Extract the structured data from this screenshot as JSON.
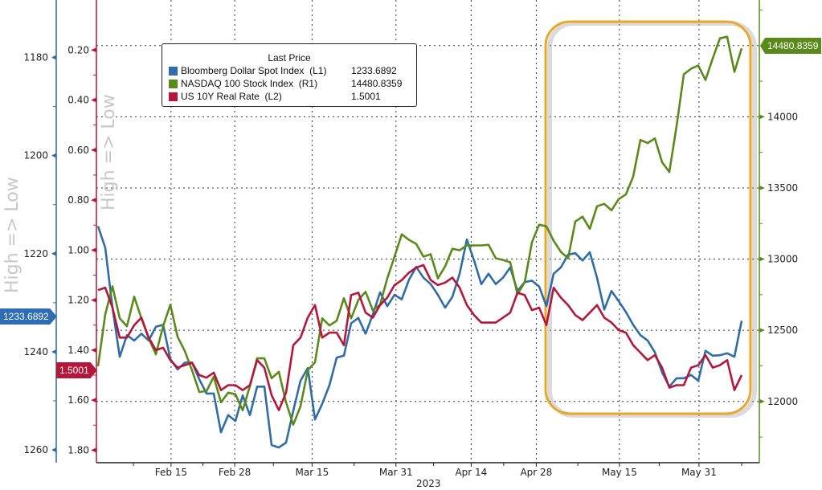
{
  "chart_data": {
    "type": "line",
    "title": "",
    "x_unit": "trading days since Feb 1, 2023",
    "xlabel": "2023",
    "x_ticks": [
      {
        "label": "Feb 15",
        "t": 10.1
      },
      {
        "label": "Feb 28",
        "t": 18.9
      },
      {
        "label": "Mar 15",
        "t": 29.6
      },
      {
        "label": "Mar 31",
        "t": 41.2
      },
      {
        "label": "Apr 14",
        "t": 51.6
      },
      {
        "label": "Apr 28",
        "t": 60.6
      },
      {
        "label": "May 15",
        "t": 72.1
      },
      {
        "label": "May 31",
        "t": 83.1
      }
    ],
    "axes": {
      "L1": {
        "label": "High => Low",
        "inverted": true,
        "range": [
          1168.3,
          1262.6
        ],
        "ticks": [
          1180,
          1200,
          1220,
          1240,
          1260
        ],
        "labels": [
          "1180",
          "1200",
          "1220",
          "1240",
          "1260"
        ],
        "color": "#2F6CA8"
      },
      "L2": {
        "label": "High => Low",
        "inverted": true,
        "range": [
          0.0,
          1.85
        ],
        "ticks": [
          0.2,
          0.4,
          0.6,
          0.8,
          1.0,
          1.2,
          1.4,
          1.6,
          1.8
        ],
        "labels": [
          "0.20",
          "0.40",
          "0.60",
          "0.80",
          "1.00",
          "1.20",
          "1.40",
          "1.60",
          "1.80"
        ],
        "color": "#B5173A"
      },
      "R1": {
        "inverted": false,
        "range": [
          11570,
          14820
        ],
        "ticks": [
          12000,
          12500,
          13000,
          13500,
          14000
        ],
        "labels": [
          "12000",
          "12500",
          "13000",
          "13500",
          "14000"
        ],
        "color": "#5A8A1A"
      }
    },
    "legend": {
      "title": "Last Price",
      "placement": "top-left",
      "entries": [
        {
          "name": "Bloomberg Dollar Spot Index",
          "axis": "(L1)",
          "last": "1233.6892"
        },
        {
          "name": "NASDAQ 100 Stock Index",
          "axis": "(R1)",
          "last": "14480.8359"
        },
        {
          "name": "US 10Y Real Rate",
          "axis": "(L2)",
          "last": "1.5001"
        }
      ]
    },
    "series": [
      {
        "name": "Bloomberg Dollar Spot Index",
        "axis": "L1",
        "color": "#2F6CA8",
        "last_label": "1233.6892",
        "values": [
          1214.4,
          1218.8,
          1231.0,
          1241.0,
          1236.6,
          1237.7,
          1236.3,
          1237.7,
          1234.9,
          1234.5,
          1241.5,
          1243.6,
          1242.2,
          1242.2,
          1245.6,
          1248.5,
          1248.5,
          1256.4,
          1252.9,
          1254.1,
          1248.9,
          1252.9,
          1247.1,
          1247.1,
          1259.0,
          1259.5,
          1258.5,
          1252.0,
          1245.9,
          1243.3,
          1253.8,
          1250.6,
          1246.8,
          1241.2,
          1240.8,
          1234.2,
          1233.1,
          1236.3,
          1232.4,
          1227.9,
          1230.7,
          1228.4,
          1229.3,
          1225.3,
          1222.7,
          1224.9,
          1226.2,
          1228.4,
          1231.0,
          1228.8,
          1224.1,
          1217.1,
          1221.4,
          1226.2,
          1224.1,
          1226.2,
          1224.9,
          1222.8,
          1227.6,
          1225.8,
          1225.5,
          1226.7,
          1230.7,
          1224.1,
          1222.8,
          1220.2,
          1219.9,
          1221.4,
          1219.7,
          1224.9,
          1231.4,
          1227.6,
          1229.7,
          1231.9,
          1234.5,
          1236.6,
          1237.7,
          1240.1,
          1244.2,
          1247.1,
          1245.4,
          1245.4,
          1244.7,
          1245.9,
          1239.8,
          1240.8,
          1240.7,
          1240.3,
          1241.0,
          1233.69
        ]
      },
      {
        "name": "NASDAQ 100 Stock Index",
        "axis": "R1",
        "color": "#5A8A1A",
        "last_label": "14480.8359",
        "values": [
          12247,
          12612,
          12809,
          12584,
          12528,
          12736,
          12584,
          12444,
          12331,
          12528,
          12680,
          12455,
          12354,
          12219,
          12067,
          12073,
          12174,
          11994,
          12062,
          12051,
          11938,
          12107,
          12303,
          12303,
          12163,
          12208,
          11994,
          11837,
          11966,
          12219,
          12275,
          12584,
          12534,
          12567,
          12725,
          12584,
          12713,
          12770,
          12640,
          12680,
          12865,
          13017,
          13174,
          13135,
          13107,
          13017,
          13034,
          12865,
          12949,
          13073,
          13062,
          13096,
          13096,
          13096,
          13101,
          13006,
          12994,
          12978,
          12753,
          12837,
          13118,
          13242,
          13230,
          13129,
          13051,
          13006,
          13264,
          13298,
          13213,
          13371,
          13388,
          13343,
          13421,
          13455,
          13579,
          13837,
          13815,
          13848,
          13680,
          13612,
          13933,
          14298,
          14337,
          14360,
          14258,
          14410,
          14551,
          14562,
          14315,
          14481
        ]
      },
      {
        "name": "US 10Y Real Rate",
        "axis": "L2",
        "color": "#B5173A",
        "last_label": "1.5001",
        "values": [
          1.16,
          1.15,
          1.23,
          1.35,
          1.35,
          1.3,
          1.27,
          1.35,
          1.4,
          1.39,
          1.44,
          1.47,
          1.46,
          1.45,
          1.5,
          1.51,
          1.49,
          1.56,
          1.54,
          1.54,
          1.56,
          1.54,
          1.44,
          1.47,
          1.58,
          1.64,
          1.57,
          1.38,
          1.35,
          1.27,
          1.22,
          1.35,
          1.33,
          1.33,
          1.38,
          1.18,
          1.17,
          1.25,
          1.27,
          1.22,
          1.19,
          1.14,
          1.12,
          1.09,
          1.07,
          1.06,
          1.12,
          1.14,
          1.13,
          1.11,
          1.15,
          1.22,
          1.26,
          1.29,
          1.29,
          1.29,
          1.27,
          1.25,
          1.17,
          1.18,
          1.24,
          1.23,
          1.3,
          1.15,
          1.19,
          1.22,
          1.26,
          1.28,
          1.25,
          1.22,
          1.27,
          1.29,
          1.32,
          1.33,
          1.38,
          1.41,
          1.44,
          1.42,
          1.47,
          1.55,
          1.54,
          1.54,
          1.47,
          1.46,
          1.42,
          1.47,
          1.46,
          1.44,
          1.56,
          1.5
        ]
      }
    ],
    "annotations": [
      {
        "type": "highlight-box",
        "color": "#E8A92A",
        "t_range": [
          62,
          90
        ]
      }
    ],
    "grid": true
  }
}
